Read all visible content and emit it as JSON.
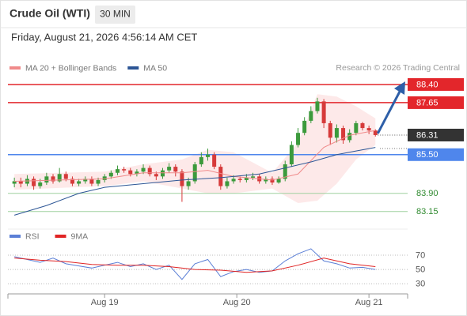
{
  "header": {
    "title": "Crude Oil (WTI)",
    "timeframe": "30 MIN",
    "datetime": "Friday, August 21, 2026 4:56:14 AM CET"
  },
  "chart_data": {
    "type": "candlestick",
    "credit": "Research © 2026 Trading Central",
    "up_color": "#3c9a3c",
    "down_color": "#d63a3a",
    "xlim": [
      -1,
      61
    ],
    "xticks": [
      {
        "value": 14,
        "label": "Aug 19"
      },
      {
        "value": 34.5,
        "label": "Aug 20"
      },
      {
        "value": 55,
        "label": "Aug 21"
      }
    ],
    "ylim": [
      82.75,
      88.79
    ],
    "open": [
      84.3,
      84.4,
      84.3,
      84.5,
      84.2,
      84.35,
      84.6,
      84.4,
      84.7,
      84.5,
      84.3,
      84.4,
      84.5,
      84.3,
      84.45,
      84.6,
      84.75,
      84.9,
      84.85,
      84.7,
      84.8,
      84.95,
      84.7,
      84.6,
      84.85,
      85.0,
      84.8,
      84.2,
      84.4,
      85.1,
      85.4,
      85.5,
      85.0,
      84.2,
      84.4,
      84.5,
      84.45,
      84.55,
      84.6,
      84.4,
      84.5,
      84.35,
      84.5,
      85.1,
      85.9,
      86.4,
      86.9,
      87.3,
      87.7,
      86.8,
      86.2,
      86.6,
      86.1,
      86.4,
      86.8,
      86.6,
      86.5
    ],
    "high": [
      84.55,
      84.55,
      84.65,
      84.6,
      84.5,
      84.75,
      84.7,
      84.95,
      84.8,
      84.6,
      84.5,
      84.6,
      84.6,
      84.55,
      84.7,
      84.85,
      85.05,
      85.0,
      84.95,
      84.9,
      85.1,
      85.05,
      84.8,
      84.95,
      85.15,
      85.1,
      84.9,
      84.55,
      85.2,
      85.6,
      85.75,
      85.6,
      85.1,
      84.55,
      84.65,
      84.6,
      84.7,
      84.75,
      84.7,
      84.6,
      84.6,
      84.6,
      85.25,
      86.05,
      86.6,
      87.05,
      87.5,
      87.85,
      87.8,
      86.9,
      86.75,
      86.7,
      86.55,
      86.9,
      86.85,
      86.7,
      86.55
    ],
    "low": [
      84.15,
      84.15,
      84.2,
      84.05,
      84.1,
      84.25,
      84.3,
      84.35,
      84.4,
      84.2,
      84.2,
      84.3,
      84.2,
      84.2,
      84.35,
      84.5,
      84.65,
      84.75,
      84.6,
      84.6,
      84.7,
      84.6,
      84.45,
      84.5,
      84.75,
      84.6,
      83.55,
      84.05,
      84.3,
      85.0,
      85.25,
      84.9,
      84.05,
      84.1,
      84.3,
      84.35,
      84.35,
      84.45,
      84.3,
      84.3,
      84.25,
      84.3,
      84.4,
      85.0,
      85.8,
      86.3,
      86.8,
      87.2,
      86.6,
      85.9,
      86.0,
      85.95,
      86.0,
      86.3,
      86.5,
      86.35,
      86.25
    ],
    "close": [
      84.4,
      84.3,
      84.5,
      84.2,
      84.35,
      84.6,
      84.4,
      84.7,
      84.5,
      84.3,
      84.4,
      84.5,
      84.3,
      84.45,
      84.6,
      84.75,
      84.9,
      84.85,
      84.7,
      84.8,
      84.95,
      84.7,
      84.6,
      84.85,
      85.0,
      84.8,
      84.2,
      84.4,
      85.1,
      85.4,
      85.5,
      85.0,
      84.2,
      84.4,
      84.5,
      84.45,
      84.55,
      84.6,
      84.4,
      84.5,
      84.35,
      84.5,
      85.1,
      85.9,
      86.4,
      86.9,
      87.3,
      87.7,
      86.8,
      86.2,
      86.6,
      86.1,
      86.4,
      86.8,
      86.6,
      86.5,
      86.31
    ],
    "overlays": [
      {
        "name": "MA 20 + Bollinger Bands",
        "color": "#f08a8a",
        "x": [
          0,
          7,
          14,
          20,
          26,
          30,
          34,
          40,
          44,
          48,
          52,
          56
        ],
        "values": [
          84.4,
          84.45,
          84.5,
          84.75,
          84.75,
          84.85,
          84.6,
          84.45,
          84.7,
          85.8,
          86.3,
          86.5
        ],
        "band": {
          "color": "#fde3e3",
          "x": [
            0,
            14,
            20,
            26,
            30,
            34,
            40,
            44,
            47,
            50,
            53,
            56
          ],
          "upper": [
            84.7,
            84.8,
            85.1,
            85.3,
            85.7,
            85.6,
            84.75,
            86.0,
            88.0,
            87.9,
            87.5,
            87.0
          ],
          "lower": [
            84.05,
            84.2,
            84.4,
            84.1,
            83.9,
            83.9,
            84.1,
            83.5,
            83.6,
            84.3,
            85.3,
            85.9
          ]
        }
      },
      {
        "name": "MA 50",
        "color": "#2c5595",
        "x": [
          0,
          5,
          10,
          14,
          20,
          26,
          32,
          38,
          42,
          46,
          50,
          53,
          56
        ],
        "values": [
          83.0,
          83.4,
          83.9,
          84.15,
          84.3,
          84.45,
          84.55,
          84.7,
          84.95,
          85.2,
          85.5,
          85.65,
          85.8
        ]
      }
    ],
    "levels": [
      {
        "value": 88.4,
        "label": "88.40",
        "color": "#e3262b",
        "label_box": true
      },
      {
        "value": 87.65,
        "color": "#e3262b",
        "label_box": true
      },
      {
        "value": 85.5,
        "label": "85.50",
        "color": "#4f86ec",
        "label_box": true
      },
      {
        "value": 83.9,
        "label": "83.90",
        "color": "#9fd19f",
        "label_color": "#2f8a2f",
        "label_box": false
      },
      {
        "value": 83.15,
        "color": "#9fd19f",
        "label_color": "#2f8a2f",
        "label_box": false
      }
    ],
    "last_price": 86.31,
    "rsi": {
      "ylim": [
        18,
        90
      ],
      "yticks": [
        30,
        50,
        70
      ],
      "series": [
        {
          "name": "RSI",
          "color": "#5b7fd6",
          "x": [
            0,
            2,
            4,
            6,
            8,
            10,
            12,
            14,
            16,
            18,
            20,
            22,
            24,
            26,
            28,
            30,
            32,
            34,
            36,
            38,
            40,
            42,
            44,
            46,
            48,
            50,
            52,
            54,
            56
          ],
          "values": [
            68,
            64,
            60,
            66,
            58,
            55,
            52,
            56,
            60,
            54,
            58,
            50,
            56,
            36,
            58,
            64,
            40,
            47,
            50,
            46,
            48,
            62,
            72,
            79,
            62,
            58,
            52,
            53,
            50
          ]
        },
        {
          "name": "9MA",
          "color": "#e02424",
          "x": [
            0,
            4,
            8,
            12,
            16,
            20,
            24,
            28,
            32,
            36,
            40,
            44,
            48,
            52,
            56
          ],
          "values": [
            66,
            63,
            61,
            57,
            56,
            56,
            54,
            50,
            49,
            46,
            48,
            56,
            66,
            58,
            54
          ]
        }
      ]
    }
  }
}
